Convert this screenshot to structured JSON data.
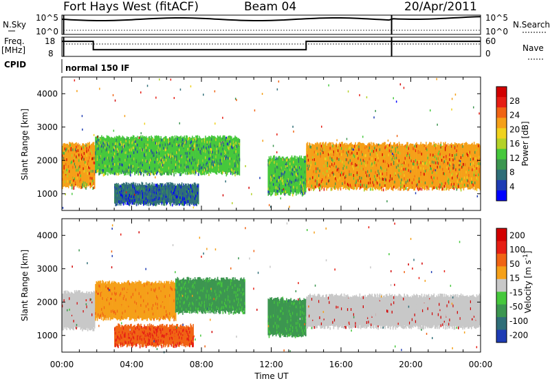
{
  "header": {
    "station": "Fort Hays West (fitACF)",
    "beam": "Beam 04",
    "date": "20/Apr/2011"
  },
  "status_panels": {
    "nsky_label": "N.Sky",
    "nsearch_label": "N.Search",
    "noise_ticks": [
      "10^5",
      "10^0"
    ],
    "freq_label_1": "Freq.",
    "freq_label_2": "[MHz]",
    "freq_ticks": [
      "18",
      "8"
    ],
    "nave_label": "Nave",
    "nave_ticks": [
      "60",
      "0"
    ],
    "cpid_label": "CPID",
    "cpid_value": "normal 150 IF",
    "freq_levels_mhz": [
      [
        0,
        1.8,
        15.8
      ],
      [
        1.8,
        14.0,
        11.5
      ],
      [
        14.0,
        24,
        15.8
      ]
    ],
    "nave_levels": [
      [
        0,
        18.9,
        51
      ],
      [
        18.9,
        24,
        53
      ]
    ],
    "mode_change_hours": [
      0.1,
      18.9
    ]
  },
  "chart_data": [
    {
      "type": "heatmap",
      "title": "Power",
      "ylabel": "Slant Range [km]",
      "xlim": [
        0,
        24
      ],
      "ylim": [
        500,
        4500
      ],
      "yticks": [
        "1000",
        "2000",
        "3000",
        "4000"
      ],
      "colorbar_label": "Power [dB]",
      "colorbar_ticks": [
        "4",
        "8",
        "12",
        "16",
        "20",
        "24",
        "28"
      ],
      "colorbar_colors": [
        "#0000ff",
        "#1e3cb4",
        "#2f6e78",
        "#3c9650",
        "#46c83c",
        "#b4d228",
        "#f0d21e",
        "#f5a019",
        "#f06414",
        "#e61e14",
        "#d20000"
      ],
      "bands": [
        {
          "t0": 0.0,
          "t1": 1.9,
          "r_low": 1200,
          "r_high": 2500,
          "level": "high"
        },
        {
          "t0": 1.9,
          "t1": 10.2,
          "r_low": 1600,
          "r_high": 2700,
          "level": "mid"
        },
        {
          "t0": 3.0,
          "t1": 7.8,
          "r_low": 700,
          "r_high": 1300,
          "level": "low"
        },
        {
          "t0": 11.8,
          "t1": 14.0,
          "r_low": 1000,
          "r_high": 2100,
          "level": "mid"
        },
        {
          "t0": 14.0,
          "t1": 24.0,
          "r_low": 1150,
          "r_high": 2500,
          "level": "high"
        }
      ]
    },
    {
      "type": "heatmap",
      "title": "Velocity",
      "ylabel": "Slant Range [km]",
      "xlabel": "Time UT",
      "xlim": [
        0,
        24
      ],
      "ylim": [
        500,
        4500
      ],
      "xticks": [
        "00:00",
        "04:00",
        "08:00",
        "12:00",
        "16:00",
        "20:00",
        "00:00"
      ],
      "yticks": [
        "1000",
        "2000",
        "3000",
        "4000"
      ],
      "colorbar_label_main": "Velocity [m s",
      "colorbar_label_sup": "-1",
      "colorbar_label_end": "]",
      "colorbar_ticks": [
        "200",
        "100",
        "50",
        "15",
        "-15",
        "-50",
        "-100",
        "-200"
      ],
      "colorbar_colors": [
        "#1e3cb4",
        "#2f6e78",
        "#3c9650",
        "#46c83c",
        "#c8c8c8",
        "#f5a019",
        "#f06414",
        "#e61e14",
        "#d20000"
      ],
      "bands": [
        {
          "t0": 0.0,
          "t1": 1.9,
          "r_low": 1200,
          "r_high": 2300,
          "color": "gray"
        },
        {
          "t0": 1.9,
          "t1": 6.5,
          "r_low": 1500,
          "r_high": 2600,
          "color": "orange"
        },
        {
          "t0": 6.5,
          "t1": 10.5,
          "r_low": 1700,
          "r_high": 2700,
          "color": "green"
        },
        {
          "t0": 3.0,
          "t1": 7.5,
          "r_low": 700,
          "r_high": 1300,
          "color": "orange-red"
        },
        {
          "t0": 11.8,
          "t1": 14.0,
          "r_low": 1000,
          "r_high": 2100,
          "color": "green"
        },
        {
          "t0": 14.0,
          "t1": 24.0,
          "r_low": 1250,
          "r_high": 2200,
          "color": "gray"
        }
      ]
    }
  ]
}
